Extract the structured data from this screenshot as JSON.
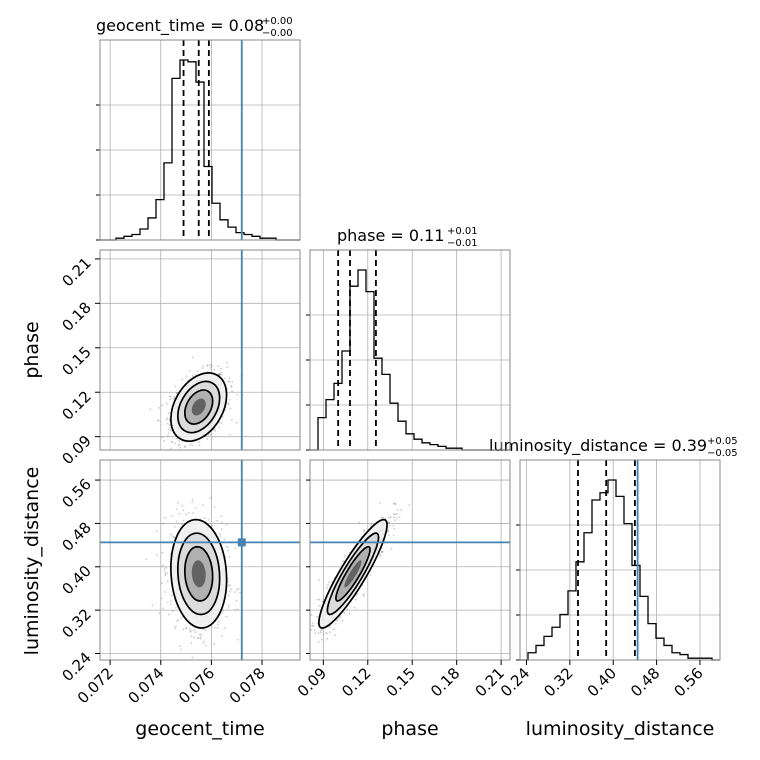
{
  "chart_data": {
    "type": "corner",
    "parameters": [
      "geocent_time",
      "phase",
      "luminosity_distance"
    ],
    "truths": {
      "geocent_time": 0.0772,
      "phase": null,
      "luminosity_distance": 0.445
    },
    "titles": [
      {
        "param": "geocent_time",
        "text": "geocent_time = 0.08",
        "sup": "+0.00",
        "sub": "−0.00"
      },
      {
        "param": "phase",
        "text": "phase = 0.11",
        "sup": "+0.01",
        "sub": "−0.01"
      },
      {
        "param": "luminosity_distance",
        "text": "luminosity_distance = 0.39",
        "sup": "+0.05",
        "sub": "−0.05"
      }
    ],
    "ranges": {
      "geocent_time": [
        0.0716,
        0.0795
      ],
      "phase": [
        0.081,
        0.216
      ],
      "luminosity_distance": [
        0.228,
        0.597
      ]
    },
    "ticks": {
      "geocent_time": [
        "0.072",
        "0.074",
        "0.076",
        "0.078"
      ],
      "phase": [
        "0.09",
        "0.12",
        "0.15",
        "0.18",
        "0.21"
      ],
      "luminosity_distance": [
        "0.24",
        "0.32",
        "0.40",
        "0.48",
        "0.56"
      ]
    },
    "quantiles": {
      "geocent_time": [
        0.0749,
        0.0755,
        0.0759
      ],
      "phase": [
        0.1,
        0.108,
        0.1255
      ],
      "luminosity_distance": [
        0.335,
        0.387,
        0.44
      ]
    },
    "histograms": {
      "geocent_time": {
        "range": [
          0.0716,
          0.0795
        ],
        "counts": [
          0,
          0,
          1,
          2,
          3,
          6,
          12,
          22,
          42,
          88,
          98,
          97,
          86,
          40,
          20,
          11,
          7,
          4,
          3,
          2,
          1,
          1,
          0,
          0,
          0
        ]
      },
      "phase": {
        "range": [
          0.081,
          0.216
        ],
        "counts": [
          0,
          18,
          28,
          37,
          55,
          91,
          100,
          88,
          51,
          42,
          26,
          16,
          9,
          6,
          4,
          3,
          2,
          1,
          1,
          0,
          0,
          0,
          0,
          0,
          0
        ]
      },
      "luminosity_distance": {
        "range": [
          0.228,
          0.597
        ],
        "counts": [
          0,
          4,
          8,
          13,
          18,
          25,
          38,
          54,
          70,
          88,
          92,
          99,
          90,
          75,
          52,
          35,
          20,
          12,
          8,
          4,
          3,
          1,
          1,
          1,
          0
        ]
      }
    },
    "correlations": {
      "phase_vs_geocent_time": 0.35,
      "luminosity_distance_vs_geocent_time": -0.1,
      "luminosity_distance_vs_phase": 0.9
    },
    "grid": true
  }
}
